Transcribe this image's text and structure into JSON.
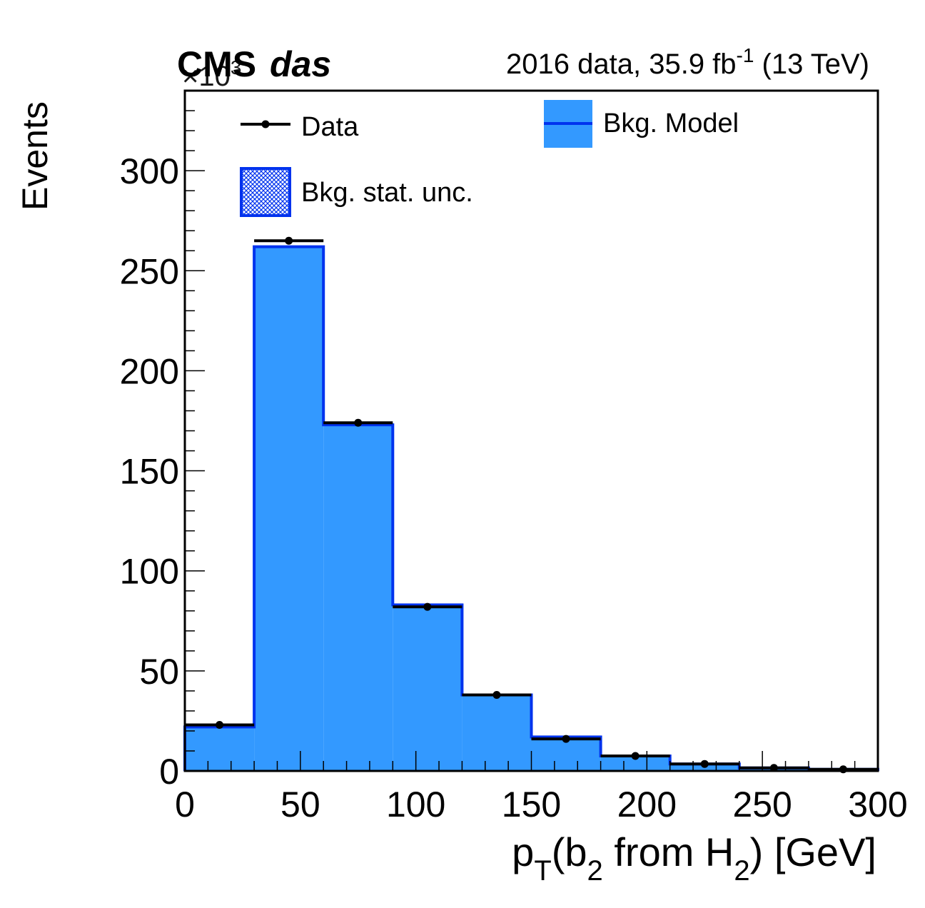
{
  "header": {
    "cms": "CMS",
    "das": "das",
    "lumi_prefix": "2016 data, 35.9 fb",
    "lumi_exp": "-1",
    "lumi_suffix": " (13 TeV)",
    "exponent_base": "×10",
    "exponent_power": "3"
  },
  "axes": {
    "ylabel": "Events",
    "xlabel_p": "p",
    "xlabel_T": "T",
    "xlabel_mid": "(b",
    "xlabel_2a": "2",
    "xlabel_from": " from H",
    "xlabel_2b": "2",
    "xlabel_end": ") [GeV]"
  },
  "legend": {
    "data_label": "Data",
    "model_label": "Bkg. Model",
    "unc_label": "Bkg. stat. unc."
  },
  "colors": {
    "fill": "#3399ff",
    "line": "#0033ee",
    "data": "#000000"
  },
  "chart_data": {
    "type": "bar",
    "title": "",
    "xlabel": "p_T(b_2 from H_2) [GeV]",
    "ylabel": "Events",
    "y_multiplier": "×10^3",
    "xlim": [
      0,
      300
    ],
    "ylim": [
      0,
      340
    ],
    "xticks": [
      0,
      50,
      100,
      150,
      200,
      250,
      300
    ],
    "yticks": [
      0,
      50,
      100,
      150,
      200,
      250,
      300
    ],
    "bin_edges": [
      0,
      30,
      60,
      90,
      120,
      150,
      180,
      210,
      240,
      270,
      300
    ],
    "series": [
      {
        "name": "Bkg. Model",
        "type": "histogram",
        "values": [
          22,
          262,
          173,
          83,
          38,
          17,
          7.5,
          3.5,
          1.5,
          0.8
        ]
      },
      {
        "name": "Data",
        "type": "points",
        "values": [
          23,
          265,
          174,
          82,
          38,
          16,
          7.5,
          3.5,
          1.5,
          0.8
        ]
      }
    ]
  }
}
